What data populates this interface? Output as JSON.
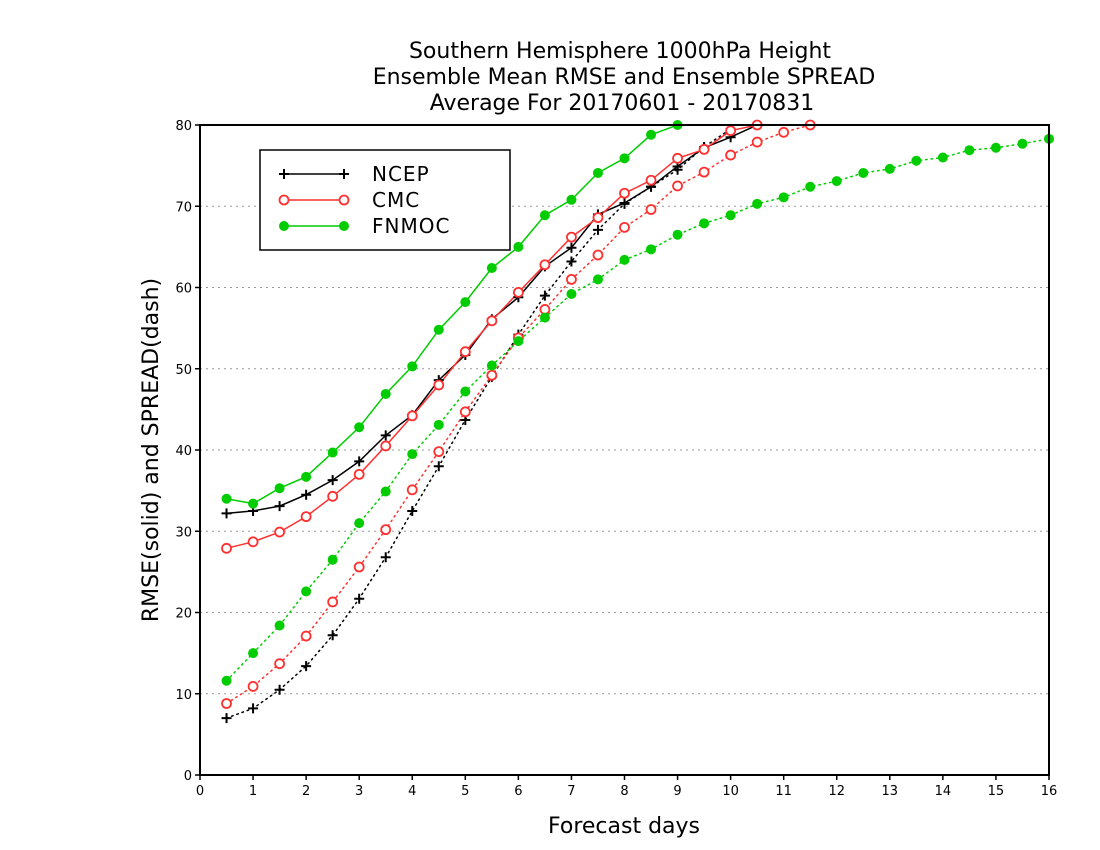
{
  "chart_data": {
    "type": "line",
    "title": [
      "Southern Hemisphere 1000hPa Height",
      "Ensemble Mean RMSE and Ensemble SPREAD",
      "Average For 20170601 - 20170831"
    ],
    "xlabel": "Forecast days",
    "ylabel": "RMSE(solid) and SPREAD(dash)",
    "xlim": [
      0,
      16
    ],
    "ylim": [
      0,
      80
    ],
    "xticks": [
      "0",
      "1",
      "2",
      "3",
      "4",
      "5",
      "6",
      "7",
      "8",
      "9",
      "10",
      "11",
      "12",
      "13",
      "14",
      "15",
      "16"
    ],
    "yticks": [
      "0",
      "10",
      "20",
      "30",
      "40",
      "50",
      "60",
      "70",
      "80"
    ],
    "grid": "horizontal dotted",
    "legend_position": "top-left",
    "series": [
      {
        "name": "NCEP",
        "color": "#000000",
        "marker": "plus",
        "rmse": [
          [
            0.5,
            32.2
          ],
          [
            1,
            32.5
          ],
          [
            1.5,
            33.1
          ],
          [
            2,
            34.5
          ],
          [
            2.5,
            36.3
          ],
          [
            3,
            38.6
          ],
          [
            3.5,
            41.8
          ],
          [
            4,
            44.3
          ],
          [
            4.5,
            48.6
          ],
          [
            5,
            51.7
          ],
          [
            5.5,
            56.1
          ],
          [
            6,
            58.8
          ],
          [
            6.5,
            62.6
          ],
          [
            7,
            64.9
          ],
          [
            7.5,
            69.0
          ],
          [
            8,
            70.4
          ],
          [
            8.5,
            72.4
          ],
          [
            9,
            74.9
          ],
          [
            9.5,
            77.2
          ],
          [
            10,
            78.5
          ],
          [
            10.5,
            80.0
          ]
        ],
        "spread": [
          [
            0.5,
            7.0
          ],
          [
            1,
            8.2
          ],
          [
            1.5,
            10.5
          ],
          [
            2,
            13.4
          ],
          [
            2.5,
            17.2
          ],
          [
            3,
            21.7
          ],
          [
            3.5,
            26.8
          ],
          [
            4,
            32.5
          ],
          [
            4.5,
            38.0
          ],
          [
            5,
            43.7
          ],
          [
            5.5,
            49.0
          ],
          [
            6,
            54.2
          ],
          [
            6.5,
            59.0
          ],
          [
            7,
            63.2
          ],
          [
            7.5,
            67.1
          ],
          [
            8,
            70.3
          ],
          [
            8.5,
            72.4
          ],
          [
            9,
            74.5
          ],
          [
            9.5,
            77.3
          ],
          [
            10,
            79.5
          ]
        ]
      },
      {
        "name": "CMC",
        "color": "#ff3030",
        "marker": "open-circle",
        "rmse": [
          [
            0.5,
            27.9
          ],
          [
            1,
            28.7
          ],
          [
            1.5,
            29.9
          ],
          [
            2,
            31.8
          ],
          [
            2.5,
            34.3
          ],
          [
            3,
            37.0
          ],
          [
            3.5,
            40.5
          ],
          [
            4,
            44.2
          ],
          [
            4.5,
            48.0
          ],
          [
            5,
            52.1
          ],
          [
            5.5,
            55.9
          ],
          [
            6,
            59.4
          ],
          [
            6.5,
            62.8
          ],
          [
            7,
            66.2
          ],
          [
            7.5,
            68.6
          ],
          [
            8,
            71.6
          ],
          [
            8.5,
            73.2
          ],
          [
            9,
            75.9
          ],
          [
            9.5,
            77.0
          ],
          [
            10,
            79.3
          ],
          [
            10.5,
            80.0
          ]
        ],
        "spread": [
          [
            0.5,
            8.8
          ],
          [
            1,
            10.9
          ],
          [
            1.5,
            13.7
          ],
          [
            2,
            17.1
          ],
          [
            2.5,
            21.3
          ],
          [
            3,
            25.6
          ],
          [
            3.5,
            30.2
          ],
          [
            4,
            35.1
          ],
          [
            4.5,
            39.8
          ],
          [
            5,
            44.7
          ],
          [
            5.5,
            49.2
          ],
          [
            6,
            53.8
          ],
          [
            6.5,
            57.3
          ],
          [
            7,
            61.0
          ],
          [
            7.5,
            64.0
          ],
          [
            8,
            67.4
          ],
          [
            8.5,
            69.6
          ],
          [
            9,
            72.5
          ],
          [
            9.5,
            74.2
          ],
          [
            10,
            76.3
          ],
          [
            10.5,
            77.9
          ],
          [
            11,
            79.1
          ],
          [
            11.5,
            80.0
          ]
        ]
      },
      {
        "name": "FNMOC",
        "color": "#00cc00",
        "marker": "filled-circle",
        "rmse": [
          [
            0.5,
            34.0
          ],
          [
            1,
            33.4
          ],
          [
            1.5,
            35.3
          ],
          [
            2,
            36.7
          ],
          [
            2.5,
            39.7
          ],
          [
            3,
            42.8
          ],
          [
            3.5,
            46.9
          ],
          [
            4,
            50.3
          ],
          [
            4.5,
            54.8
          ],
          [
            5,
            58.2
          ],
          [
            5.5,
            62.4
          ],
          [
            6,
            65.0
          ],
          [
            6.5,
            68.9
          ],
          [
            7,
            70.8
          ],
          [
            7.5,
            74.1
          ],
          [
            8,
            75.9
          ],
          [
            8.5,
            78.8
          ],
          [
            9,
            80.0
          ]
        ],
        "spread": [
          [
            0.5,
            11.6
          ],
          [
            1,
            15.0
          ],
          [
            1.5,
            18.4
          ],
          [
            2,
            22.6
          ],
          [
            2.5,
            26.5
          ],
          [
            3,
            31.0
          ],
          [
            3.5,
            34.9
          ],
          [
            4,
            39.5
          ],
          [
            4.5,
            43.1
          ],
          [
            5,
            47.2
          ],
          [
            5.5,
            50.4
          ],
          [
            6,
            53.4
          ],
          [
            6.5,
            56.3
          ],
          [
            7,
            59.2
          ],
          [
            7.5,
            61.0
          ],
          [
            8,
            63.4
          ],
          [
            8.5,
            64.7
          ],
          [
            9,
            66.5
          ],
          [
            9.5,
            67.9
          ],
          [
            10,
            68.9
          ],
          [
            10.5,
            70.3
          ],
          [
            11,
            71.1
          ],
          [
            11.5,
            72.4
          ],
          [
            12,
            73.1
          ],
          [
            12.5,
            74.1
          ],
          [
            13,
            74.6
          ],
          [
            13.5,
            75.6
          ],
          [
            14,
            76.0
          ],
          [
            14.5,
            76.9
          ],
          [
            15,
            77.2
          ],
          [
            15.5,
            77.7
          ],
          [
            16,
            78.3
          ]
        ]
      }
    ]
  }
}
